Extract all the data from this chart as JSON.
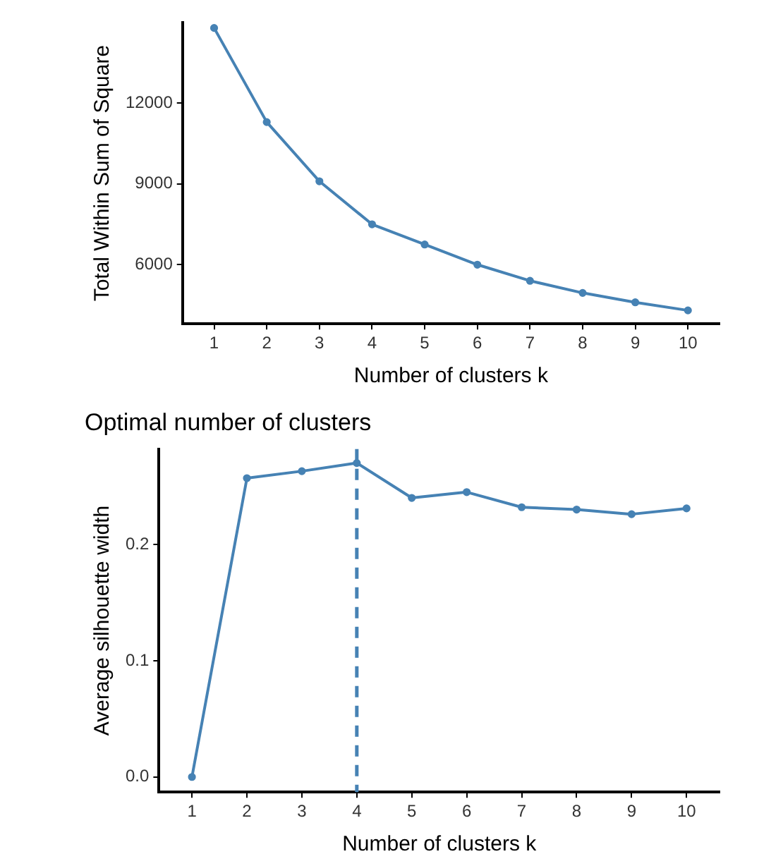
{
  "chart_data": [
    {
      "type": "line",
      "xlabel": "Number of clusters k",
      "ylabel": "Total Within Sum of Square",
      "x": [
        1,
        2,
        3,
        4,
        5,
        6,
        7,
        8,
        9,
        10
      ],
      "xlim": [
        0.4,
        10.6
      ],
      "xticks": [
        1,
        2,
        3,
        4,
        5,
        6,
        7,
        8,
        9,
        10
      ],
      "ylim": [
        3800,
        15000
      ],
      "yticks": [
        6000,
        9000,
        12000
      ],
      "series": [
        {
          "color": "#4682b4",
          "values": [
            14800,
            11300,
            9100,
            7500,
            6750,
            6000,
            5400,
            4950,
            4600,
            4300
          ]
        }
      ],
      "marker": "circle",
      "grid": false,
      "legend": false
    },
    {
      "type": "line",
      "title": "Optimal number of clusters",
      "xlabel": "Number of clusters k",
      "ylabel": "Average silhouette width",
      "x": [
        1,
        2,
        3,
        4,
        5,
        6,
        7,
        8,
        9,
        10
      ],
      "xlim": [
        0.4,
        10.6
      ],
      "xticks": [
        1,
        2,
        3,
        4,
        5,
        6,
        7,
        8,
        9,
        10
      ],
      "ylim": [
        -0.013,
        0.282
      ],
      "yticks": [
        {
          "value": 0,
          "label": "0.0"
        },
        0.1,
        0.2
      ],
      "series": [
        {
          "color": "#4682b4",
          "values": [
            0,
            0.257,
            0.263,
            0.27,
            0.24,
            0.245,
            0.232,
            0.23,
            0.226,
            0.231
          ]
        }
      ],
      "marker": "circle",
      "grid": false,
      "legend": false,
      "ref_lines": [
        {
          "axis": "x",
          "value": 4,
          "color": "#4682b4",
          "line_style": "dashed"
        }
      ]
    }
  ]
}
